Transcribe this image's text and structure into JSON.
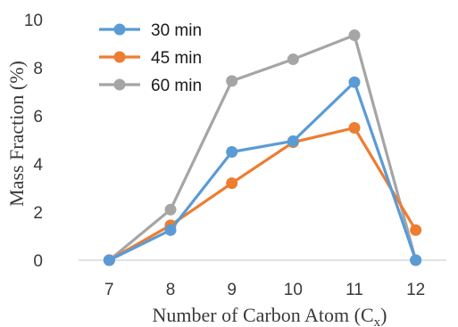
{
  "chart_data": {
    "type": "line",
    "title": "",
    "xlabel": "Number of Carbon Atom (C",
    "xlabel_subscript": "x",
    "xlabel_suffix": ")",
    "ylabel": "Mass Fraction (%)",
    "categories": [
      "7",
      "8",
      "9",
      "10",
      "11",
      "12"
    ],
    "ylim": [
      0,
      10
    ],
    "yticks": [
      "0",
      "2",
      "4",
      "6",
      "8",
      "10"
    ],
    "grid": false,
    "legend_position": "top-left",
    "series": [
      {
        "name": "30 min",
        "color": "#5b9bd5",
        "values": [
          0,
          1.25,
          4.5,
          4.95,
          7.4,
          0
        ]
      },
      {
        "name": "45 min",
        "color": "#ed7d31",
        "values": [
          0,
          1.45,
          3.2,
          4.9,
          5.5,
          1.25
        ]
      },
      {
        "name": "60 min",
        "color": "#a5a5a5",
        "values": [
          0,
          2.1,
          7.45,
          8.35,
          9.35,
          0
        ]
      }
    ]
  }
}
